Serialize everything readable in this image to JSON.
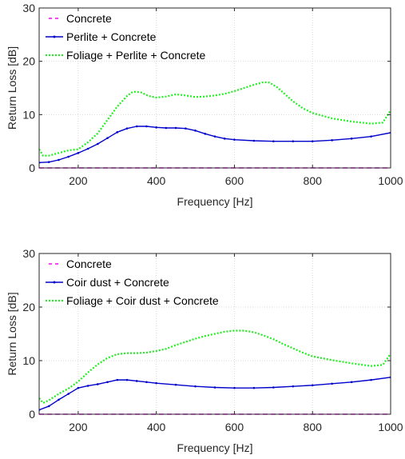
{
  "chart_data": [
    {
      "type": "line",
      "title": "",
      "xlabel": "Frequency [Hz]",
      "ylabel": "Return Loss [dB]",
      "xlim": [
        100,
        1000
      ],
      "ylim": [
        0,
        30
      ],
      "xticks": [
        200,
        400,
        600,
        800,
        1000
      ],
      "yticks": [
        0,
        10,
        20,
        30
      ],
      "grid": true,
      "legend_position": "top-left",
      "series": [
        {
          "name": "Concrete",
          "color": "#ff00ff",
          "style": "dashed",
          "x": [
            100,
            1000
          ],
          "y": [
            0,
            0
          ]
        },
        {
          "name": "Perlite + Concrete",
          "color": "#0000cc",
          "style": "solid-with-point-markers",
          "x": [
            100,
            125,
            150,
            175,
            200,
            225,
            250,
            275,
            300,
            325,
            350,
            375,
            400,
            425,
            450,
            475,
            500,
            525,
            550,
            575,
            600,
            650,
            700,
            750,
            800,
            850,
            900,
            950,
            1000
          ],
          "y": [
            1.0,
            1.1,
            1.5,
            2.1,
            2.8,
            3.6,
            4.5,
            5.6,
            6.7,
            7.4,
            7.8,
            7.8,
            7.6,
            7.5,
            7.5,
            7.4,
            7.0,
            6.4,
            5.9,
            5.5,
            5.3,
            5.1,
            5.0,
            5.0,
            5.0,
            5.2,
            5.5,
            5.9,
            6.6
          ]
        },
        {
          "name": "Foliage + Perlite + Concrete",
          "color": "#22ee22",
          "style": "dotted",
          "x": [
            100,
            110,
            125,
            150,
            175,
            200,
            225,
            250,
            275,
            300,
            325,
            340,
            360,
            380,
            400,
            425,
            450,
            475,
            500,
            525,
            550,
            575,
            600,
            625,
            650,
            675,
            690,
            710,
            730,
            750,
            775,
            800,
            850,
            900,
            950,
            980,
            1000
          ],
          "y": [
            3.5,
            2.3,
            2.3,
            2.8,
            3.3,
            3.5,
            4.8,
            6.5,
            9.0,
            11.5,
            13.5,
            14.3,
            14.2,
            13.5,
            13.2,
            13.4,
            13.8,
            13.6,
            13.3,
            13.4,
            13.6,
            13.9,
            14.4,
            15.0,
            15.6,
            16.1,
            16.0,
            15.1,
            13.8,
            12.5,
            11.2,
            10.3,
            9.3,
            8.7,
            8.3,
            8.5,
            10.8
          ]
        }
      ]
    },
    {
      "type": "line",
      "title": "",
      "xlabel": "Frequency [Hz]",
      "ylabel": "Return Loss [dB]",
      "xlim": [
        100,
        1000
      ],
      "ylim": [
        0,
        30
      ],
      "xticks": [
        200,
        400,
        600,
        800,
        1000
      ],
      "yticks": [
        0,
        10,
        20,
        30
      ],
      "grid": true,
      "legend_position": "top-left",
      "series": [
        {
          "name": "Concrete",
          "color": "#ff00ff",
          "style": "dashed",
          "x": [
            100,
            1000
          ],
          "y": [
            0,
            0
          ]
        },
        {
          "name": "Coir dust + Concrete",
          "color": "#0000cc",
          "style": "solid-with-point-markers",
          "x": [
            100,
            125,
            150,
            175,
            200,
            225,
            250,
            275,
            300,
            325,
            350,
            375,
            400,
            450,
            500,
            550,
            600,
            650,
            700,
            750,
            800,
            850,
            900,
            950,
            1000
          ],
          "y": [
            0.8,
            1.5,
            2.7,
            3.8,
            4.9,
            5.3,
            5.6,
            6.0,
            6.4,
            6.4,
            6.2,
            6.0,
            5.8,
            5.5,
            5.2,
            5.0,
            4.9,
            4.9,
            5.0,
            5.2,
            5.4,
            5.7,
            6.0,
            6.4,
            6.9
          ]
        },
        {
          "name": "Foliage + Coir dust + Concrete",
          "color": "#22ee22",
          "style": "dotted",
          "x": [
            100,
            110,
            125,
            150,
            175,
            200,
            225,
            250,
            275,
            300,
            325,
            350,
            375,
            400,
            425,
            450,
            475,
            500,
            525,
            550,
            575,
            600,
            625,
            650,
            675,
            700,
            725,
            750,
            775,
            800,
            850,
            900,
            950,
            980,
            1000
          ],
          "y": [
            3.0,
            2.1,
            2.6,
            3.8,
            4.8,
            6.1,
            7.8,
            9.3,
            10.5,
            11.2,
            11.4,
            11.4,
            11.5,
            11.8,
            12.2,
            12.9,
            13.5,
            14.1,
            14.6,
            15.0,
            15.4,
            15.6,
            15.6,
            15.3,
            14.7,
            14.0,
            13.1,
            12.3,
            11.5,
            10.8,
            10.1,
            9.5,
            9.0,
            9.2,
            11.3
          ]
        }
      ]
    }
  ]
}
